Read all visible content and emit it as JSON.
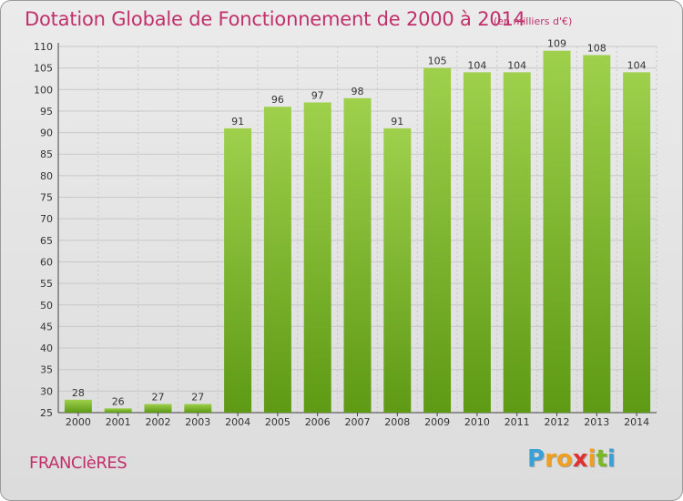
{
  "header": {
    "title": "Dotation Globale de Fonctionnement de 2000 à 2014",
    "subtitle": "(en milliers d'€)"
  },
  "commune": "FRANCIèRES",
  "logo": {
    "letters": [
      "P",
      "r",
      "o",
      "x",
      "i",
      "t",
      "i"
    ],
    "colors": [
      "#3aa0d8",
      "#f0a020",
      "#f0a020",
      "#e03030",
      "#f0a020",
      "#7ab828",
      "#3aa0d8"
    ]
  },
  "chart_data": {
    "type": "bar",
    "title": "Dotation Globale de Fonctionnement de 2000 à 2014",
    "subtitle": "(en milliers d'€)",
    "categories": [
      "2000",
      "2001",
      "2002",
      "2003",
      "2004",
      "2005",
      "2006",
      "2007",
      "2008",
      "2009",
      "2010",
      "2011",
      "2012",
      "2013",
      "2014"
    ],
    "values": [
      28,
      26,
      27,
      27,
      91,
      96,
      97,
      98,
      91,
      105,
      104,
      104,
      109,
      108,
      104
    ],
    "ylim": [
      25,
      110
    ],
    "yticks": [
      25,
      30,
      35,
      40,
      45,
      50,
      55,
      60,
      65,
      70,
      75,
      80,
      85,
      90,
      95,
      100,
      105,
      110
    ],
    "grid": true,
    "bar_color": "#7ab828",
    "xlabel": "",
    "ylabel": ""
  }
}
